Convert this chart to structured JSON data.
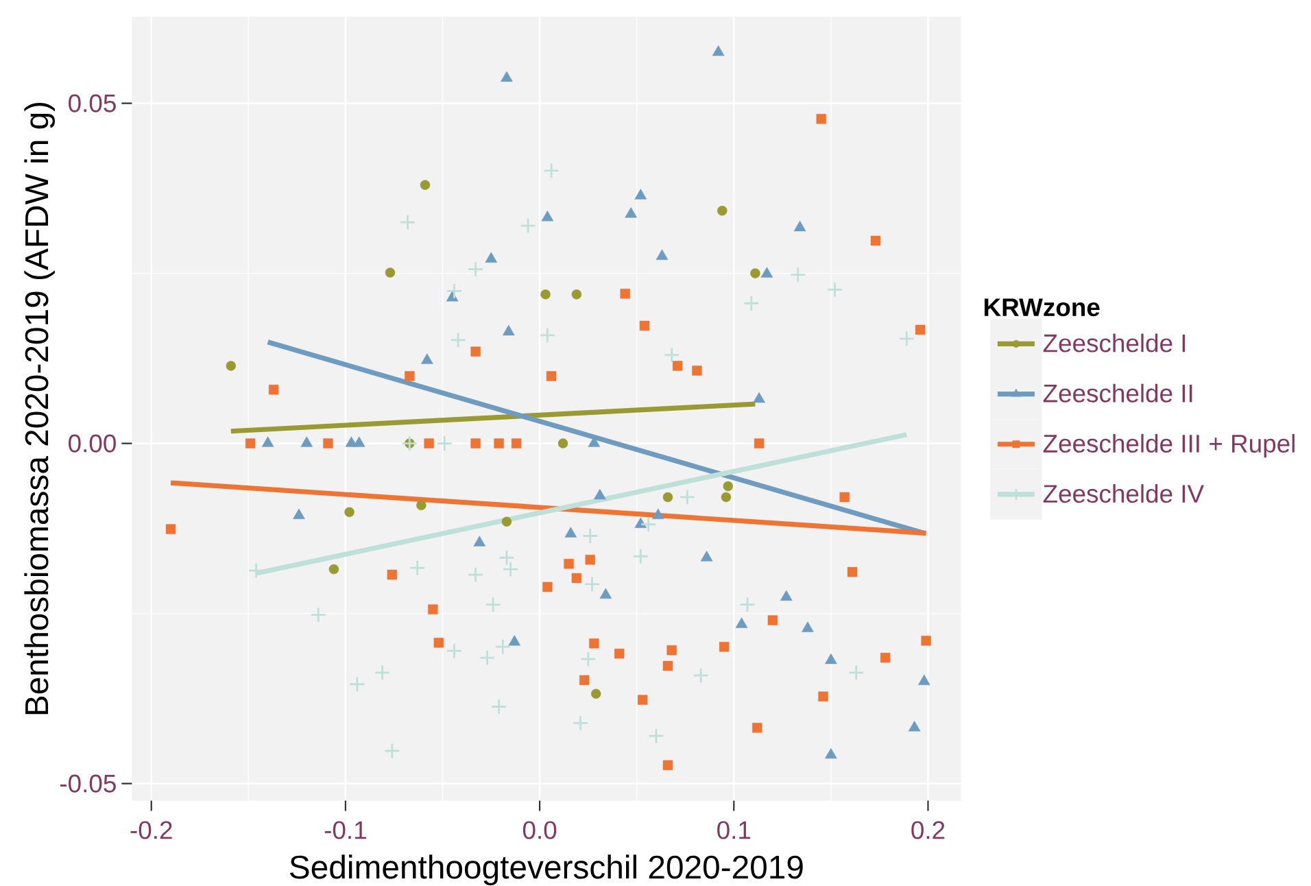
{
  "chart_data": {
    "type": "scatter",
    "xlabel": "Sedimenthoogteverschil 2020-2019",
    "ylabel": "Benthosbiomassa 2020-2019 (AFDW in g)",
    "legend_title": "KRWzone",
    "legend": "right",
    "grid": true,
    "xlim": [
      -0.21,
      0.217
    ],
    "ylim": [
      -0.0525,
      0.0627
    ],
    "xticks": [
      -0.2,
      -0.1,
      {
        "value": 0,
        "label": "0.0"
      },
      0.1,
      0.2
    ],
    "yticks": [
      -0.05,
      {
        "value": 0,
        "label": "0.00"
      },
      0.05
    ],
    "series": [
      {
        "name": "Zeeschelde I",
        "color": "#9a9a33",
        "marker": "circle",
        "x": [
          -0.159,
          -0.106,
          -0.098,
          -0.077,
          -0.067,
          -0.061,
          -0.059,
          -0.017,
          0.003,
          0.012,
          0.019,
          0.029,
          0.066,
          0.094,
          0.096,
          0.097,
          0.111
        ],
        "values": [
          0.0114,
          -0.0185,
          -0.0101,
          0.0251,
          0,
          -0.0091,
          0.038,
          -0.0115,
          0.0219,
          0,
          0.0219,
          -0.0368,
          -0.0079,
          0.0342,
          -0.0079,
          -0.0063,
          0.025
        ]
      },
      {
        "name": "Zeeschelde II",
        "color": "#6e9cc0",
        "marker": "triangle",
        "x": [
          -0.14,
          -0.124,
          -0.12,
          -0.097,
          -0.093,
          -0.058,
          -0.045,
          -0.031,
          -0.025,
          -0.017,
          -0.016,
          -0.013,
          0.004,
          0.016,
          0.028,
          0.031,
          0.034,
          0.047,
          0.052,
          0.052,
          0.061,
          0.063,
          0.086,
          0.092,
          0.104,
          0.113,
          0.117,
          0.127,
          0.134,
          0.138,
          0.15,
          0.15,
          0.193,
          0.198
        ],
        "values": [
          0,
          -0.0106,
          0,
          0,
          0,
          0.0122,
          0.0214,
          -0.0146,
          0.0271,
          0.0537,
          0.0164,
          -0.0292,
          0.0332,
          -0.0133,
          0,
          -0.0077,
          -0.0223,
          0.0337,
          0.0364,
          -0.0119,
          -0.0106,
          0.0275,
          -0.0168,
          0.0575,
          -0.0266,
          0.0065,
          0.0249,
          -0.0226,
          0.0317,
          -0.0272,
          -0.0319,
          -0.0458,
          -0.0418,
          -0.035
        ]
      },
      {
        "name": "Zeeschelde III + Rupel",
        "color": "#ee7434",
        "marker": "square",
        "x": [
          -0.19,
          -0.149,
          -0.137,
          -0.109,
          -0.076,
          -0.067,
          -0.057,
          -0.055,
          -0.052,
          -0.033,
          -0.033,
          -0.021,
          -0.012,
          0.004,
          0.006,
          0.015,
          0.019,
          0.023,
          0.026,
          0.028,
          0.041,
          0.044,
          0.053,
          0.054,
          0.066,
          0.066,
          0.068,
          0.071,
          0.081,
          0.095,
          0.112,
          0.113,
          0.12,
          0.146,
          0.145,
          0.157,
          0.161,
          0.173,
          0.178,
          0.196,
          0.199
        ],
        "values": [
          -0.0126,
          0,
          0.0079,
          0,
          -0.0193,
          0.0099,
          0,
          -0.0244,
          -0.0293,
          0.0135,
          0,
          0,
          0,
          -0.0211,
          0.0099,
          -0.0177,
          -0.0198,
          -0.0348,
          -0.0171,
          -0.0294,
          -0.0309,
          0.022,
          -0.0377,
          0.0173,
          -0.0327,
          -0.0473,
          -0.0304,
          0.0114,
          0.0107,
          -0.0299,
          -0.0418,
          0,
          -0.026,
          -0.0372,
          0.0477,
          -0.0079,
          -0.0189,
          0.0298,
          -0.0315,
          0.0167,
          -0.029
        ]
      },
      {
        "name": "Zeeschelde IV",
        "color": "#bfe0d9",
        "marker": "cross",
        "x": [
          -0.146,
          -0.114,
          -0.094,
          -0.081,
          -0.076,
          -0.068,
          -0.067,
          -0.063,
          -0.049,
          -0.044,
          -0.044,
          -0.042,
          -0.033,
          -0.033,
          -0.027,
          -0.024,
          -0.021,
          -0.019,
          -0.017,
          -0.015,
          -0.006,
          0.004,
          0.006,
          0.021,
          0.025,
          0.026,
          0.027,
          0.052,
          0.056,
          0.06,
          0.068,
          0.076,
          0.083,
          0.107,
          0.109,
          0.133,
          0.152,
          0.163,
          0.189
        ],
        "values": [
          -0.0187,
          -0.0252,
          -0.0354,
          -0.0337,
          -0.0452,
          0.0325,
          0,
          -0.0183,
          0,
          0.0224,
          -0.0305,
          0.0152,
          0.0256,
          -0.0193,
          -0.0315,
          -0.0237,
          -0.0387,
          -0.0299,
          -0.0168,
          -0.0185,
          0.032,
          0.0159,
          0.0401,
          -0.0411,
          -0.0317,
          -0.0136,
          -0.0207,
          -0.0166,
          -0.0119,
          -0.043,
          0.013,
          -0.0079,
          -0.0341,
          -0.0237,
          0.0206,
          0.0248,
          0.0226,
          -0.0337,
          0.0154
        ]
      },
      {
        "type": "line",
        "color": "#9a9a33",
        "x": [
          -0.159,
          0.111
        ],
        "values": [
          0.0018,
          0.0058
        ]
      },
      {
        "type": "line",
        "color": "#6e9cc0",
        "x": [
          -0.14,
          0.198
        ],
        "values": [
          0.0149,
          -0.0132
        ]
      },
      {
        "type": "line",
        "color": "#ee7434",
        "x": [
          -0.19,
          0.199
        ],
        "values": [
          -0.0058,
          -0.0132
        ]
      },
      {
        "type": "line",
        "color": "#bfe0d9",
        "x": [
          -0.146,
          0.189
        ],
        "values": [
          -0.0191,
          0.0013
        ]
      }
    ]
  }
}
